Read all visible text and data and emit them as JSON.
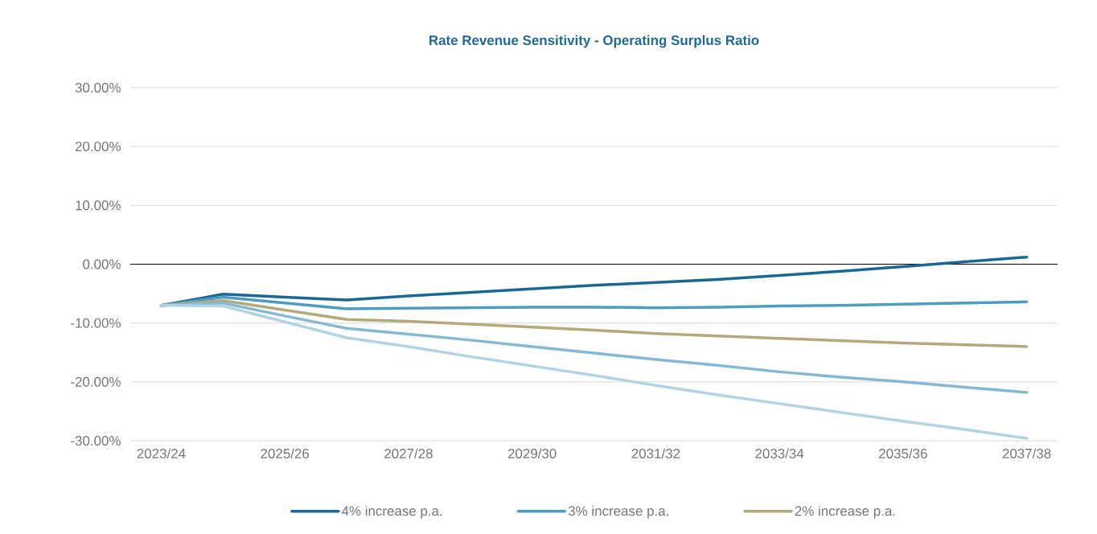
{
  "chart_data": {
    "type": "line",
    "title": "Rate Revenue Sensitivity - Operating Surplus Ratio",
    "categories": [
      "2023/24",
      null,
      "2025/26",
      null,
      "2027/28",
      null,
      "2029/30",
      null,
      "2031/32",
      null,
      "2033/34",
      null,
      "2035/36",
      null,
      "2037/38"
    ],
    "series": [
      {
        "name": "4% increase p.a.",
        "color": "#1b6896",
        "values": [
          -7.0,
          -5.1,
          -5.6,
          -6.1,
          -5.4,
          -4.8,
          -4.2,
          -3.6,
          -3.1,
          -2.6,
          -1.9,
          -1.2,
          -0.4,
          0.4,
          1.2
        ]
      },
      {
        "name": "3% increase p.a.",
        "color": "#4f9cc1",
        "values": [
          -7.0,
          -5.6,
          -6.6,
          -7.6,
          -7.5,
          -7.4,
          -7.3,
          -7.3,
          -7.4,
          -7.3,
          -7.1,
          -7.0,
          -6.8,
          -6.6,
          -6.4
        ]
      },
      {
        "name": "2% increase p.a.",
        "color": "#b3aa7a",
        "values": [
          -7.0,
          -6.2,
          -7.8,
          -9.4,
          -9.7,
          -10.2,
          -10.7,
          -11.2,
          -11.8,
          -12.2,
          -12.6,
          -13.0,
          -13.4,
          -13.7,
          -14.0
        ]
      },
      {
        "color": "#84b8d3",
        "values": [
          -7.0,
          -6.6,
          -8.8,
          -10.9,
          -11.9,
          -12.9,
          -14.0,
          -15.1,
          -16.2,
          -17.2,
          -18.3,
          -19.2,
          -20.0,
          -20.9,
          -21.8
        ]
      },
      {
        "color": "#b0d4e3",
        "values": [
          -7.0,
          -7.1,
          -9.8,
          -12.5,
          -14.0,
          -15.7,
          -17.3,
          -18.9,
          -20.6,
          -22.2,
          -23.7,
          -25.2,
          -26.7,
          -28.1,
          -29.6
        ]
      }
    ],
    "ylim": [
      -30,
      30
    ],
    "yticks": [
      {
        "value": -30,
        "label": "-30.00%"
      },
      {
        "value": -20,
        "label": "-20.00%"
      },
      {
        "value": -10,
        "label": "-10.00%"
      },
      {
        "value": 0,
        "label": "0.00%"
      },
      {
        "value": 10,
        "label": "10.00%"
      },
      {
        "value": 20,
        "label": "20.00%"
      },
      {
        "value": 30,
        "label": "30.00%"
      }
    ],
    "ref_lines": [
      {
        "axis": "y",
        "value": 0,
        "color": "#000000"
      }
    ],
    "grid": "y",
    "legend": "bottom",
    "marker": "none",
    "line_style": "solid"
  }
}
